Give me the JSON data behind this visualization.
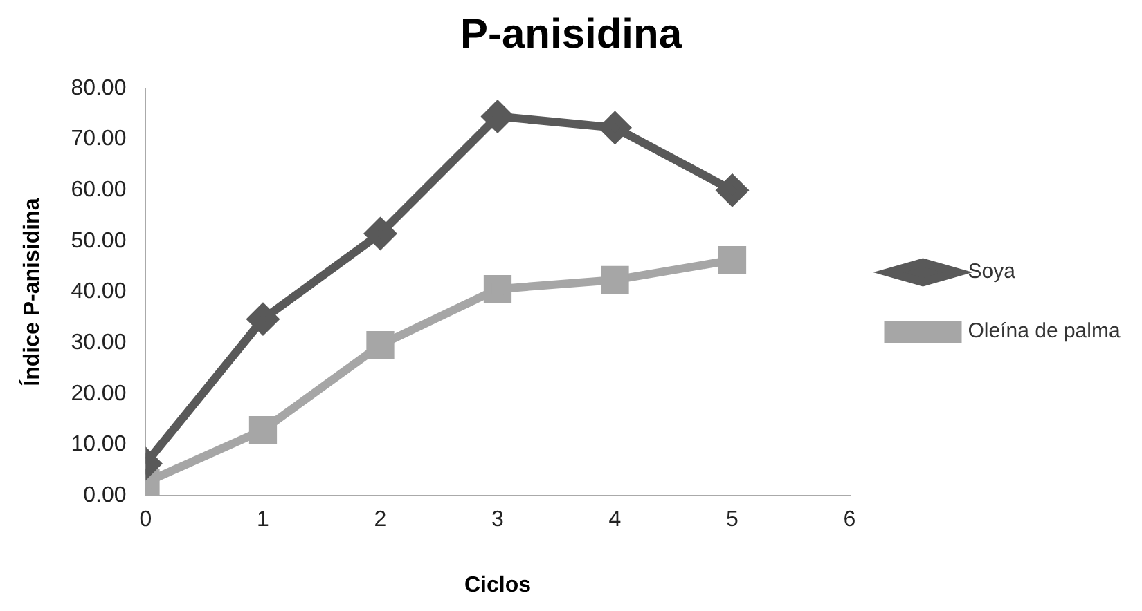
{
  "chart_data": {
    "type": "line",
    "title": "P-anisidina",
    "xlabel": "Ciclos",
    "ylabel": "Índice P-anisidina",
    "x": [
      0,
      1,
      2,
      3,
      4,
      5
    ],
    "series": [
      {
        "name": "Soya",
        "color": "#595959",
        "marker": "diamond",
        "values": [
          6.3,
          34.7,
          51.5,
          74.5,
          72.3,
          60.0
        ]
      },
      {
        "name": "Oleína de palma",
        "color": "#a6a6a6",
        "marker": "square",
        "values": [
          2.6,
          12.9,
          29.6,
          40.6,
          42.4,
          46.3
        ]
      }
    ],
    "xlim": [
      0,
      6
    ],
    "xticks": [
      0,
      1,
      2,
      3,
      4,
      5,
      6
    ],
    "ylim": [
      0,
      80
    ],
    "yticks": [
      {
        "value": 0,
        "label": "0.00"
      },
      {
        "value": 10,
        "label": "10.00"
      },
      {
        "value": 20,
        "label": "20.00"
      },
      {
        "value": 30,
        "label": "30.00"
      },
      {
        "value": 40,
        "label": "40.00"
      },
      {
        "value": 50,
        "label": "50.00"
      },
      {
        "value": 60,
        "label": "60.00"
      },
      {
        "value": 70,
        "label": "70.00"
      },
      {
        "value": 80,
        "label": "80.00"
      }
    ],
    "grid": false,
    "legend": "right"
  }
}
